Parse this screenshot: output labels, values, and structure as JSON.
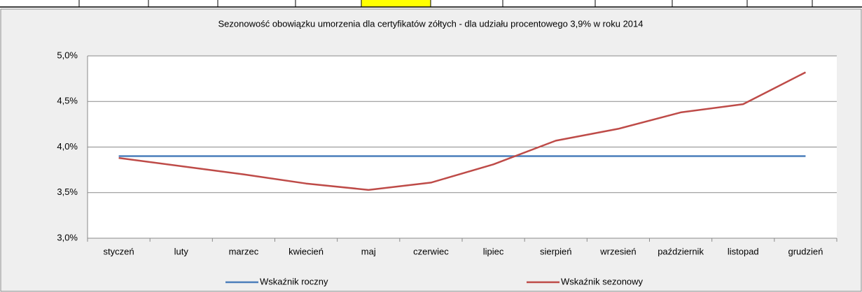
{
  "chart_data": {
    "type": "line",
    "title": "Sezonowość obowiązku umorzenia dla certyfikatów zółtych - dla udziału procentowego 3,9% w roku 2014",
    "categories": [
      "styczeń",
      "luty",
      "marzec",
      "kwiecień",
      "maj",
      "czerwiec",
      "lipiec",
      "sierpień",
      "wrzesień",
      "październik",
      "listopad",
      "grudzień"
    ],
    "series": [
      {
        "name": "Wskaźnik roczny",
        "color": "#4a7ebb",
        "values": [
          3.9,
          3.9,
          3.9,
          3.9,
          3.9,
          3.9,
          3.9,
          3.9,
          3.9,
          3.9,
          3.9,
          3.9
        ]
      },
      {
        "name": "Wskaźnik sezonowy",
        "color": "#be4b48",
        "values": [
          3.88,
          3.79,
          3.7,
          3.6,
          3.53,
          3.61,
          3.81,
          4.07,
          4.2,
          4.38,
          4.47,
          4.82
        ]
      }
    ],
    "ylim": [
      3.0,
      5.0
    ],
    "yticks": [
      {
        "value": 3.0,
        "label": "3,0%"
      },
      {
        "value": 3.5,
        "label": "3,5%"
      },
      {
        "value": 4.0,
        "label": "4,0%"
      },
      {
        "value": 4.5,
        "label": "4,5%"
      },
      {
        "value": 5.0,
        "label": "5,0%"
      }
    ],
    "grid": true,
    "legend": "bottom"
  }
}
